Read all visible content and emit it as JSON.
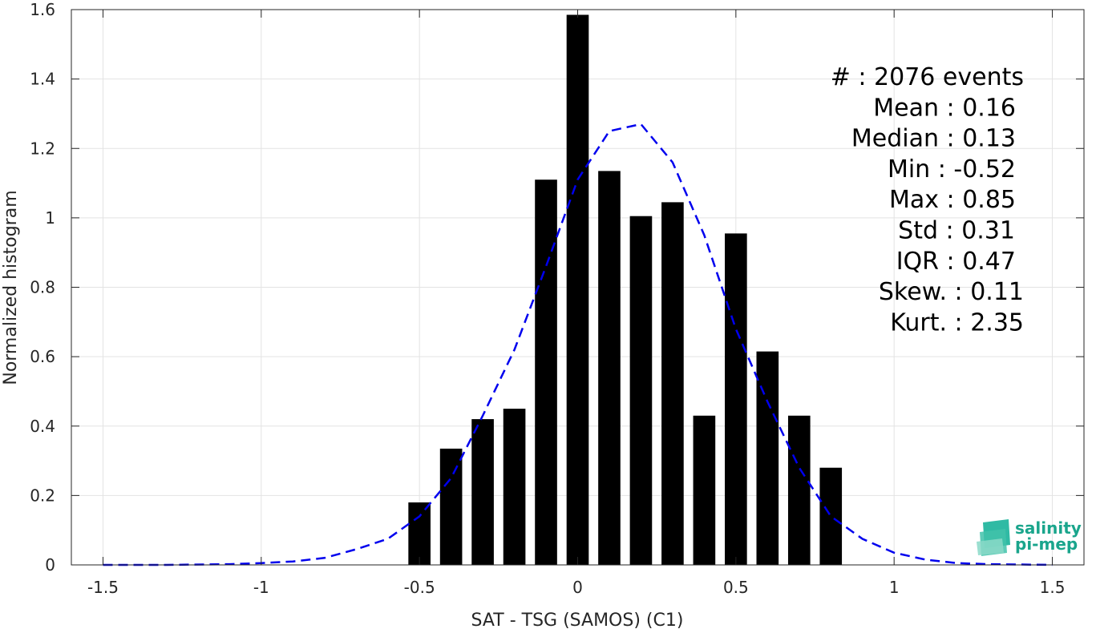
{
  "chart_data": {
    "type": "bar",
    "xlabel": "SAT - TSG (SAMOS) (C1)",
    "ylabel": "Normalized histogram",
    "xlim": [
      -1.6,
      1.6
    ],
    "ylim": [
      0,
      1.6
    ],
    "xticks": [
      -1.5,
      -1,
      -0.5,
      0,
      0.5,
      1,
      1.5
    ],
    "xtick_labels": [
      "-1.5",
      "-1",
      "-0.5",
      "0",
      "0.5",
      "1",
      "1.5"
    ],
    "yticks": [
      0,
      0.2,
      0.4,
      0.6,
      0.8,
      1,
      1.2,
      1.4,
      1.6
    ],
    "ytick_labels": [
      "0",
      "0.2",
      "0.4",
      "0.6",
      "0.8",
      "1",
      "1.2",
      "1.4",
      "1.6"
    ],
    "grid": true,
    "bar_width": 0.07,
    "bars": {
      "x": [
        -0.5,
        -0.4,
        -0.3,
        -0.2,
        -0.1,
        0.0,
        0.1,
        0.2,
        0.3,
        0.4,
        0.5,
        0.6,
        0.7,
        0.8
      ],
      "values": [
        0.18,
        0.335,
        0.42,
        0.45,
        1.11,
        1.585,
        1.135,
        1.005,
        1.045,
        0.43,
        0.955,
        0.615,
        0.43,
        0.28
      ],
      "color": "#000000"
    },
    "fit_curve": {
      "style": "dashed",
      "color": "#0000ee",
      "x": [
        -1.5,
        -1.3,
        -1.1,
        -1.0,
        -0.9,
        -0.8,
        -0.7,
        -0.6,
        -0.5,
        -0.4,
        -0.3,
        -0.2,
        -0.1,
        0.0,
        0.1,
        0.2,
        0.3,
        0.4,
        0.5,
        0.6,
        0.7,
        0.8,
        0.9,
        1.0,
        1.1,
        1.2,
        1.3,
        1.5
      ],
      "y": [
        0.0,
        0.0,
        0.002,
        0.005,
        0.01,
        0.02,
        0.045,
        0.075,
        0.14,
        0.25,
        0.43,
        0.62,
        0.86,
        1.11,
        1.25,
        1.27,
        1.16,
        0.95,
        0.68,
        0.47,
        0.28,
        0.14,
        0.075,
        0.035,
        0.015,
        0.005,
        0.002,
        0.0
      ]
    },
    "annotations": [
      "#  : 2076 events",
      "Mean : 0.16",
      "Median : 0.13",
      "Min : -0.52",
      "Max : 0.85",
      "Std : 0.31",
      "IQR : 0.47",
      "Skew. : 0.11",
      "Kurt. : 2.35"
    ]
  },
  "logo": {
    "line1": "salinity",
    "line2": "pi-mep",
    "color": "#1aa58c"
  }
}
